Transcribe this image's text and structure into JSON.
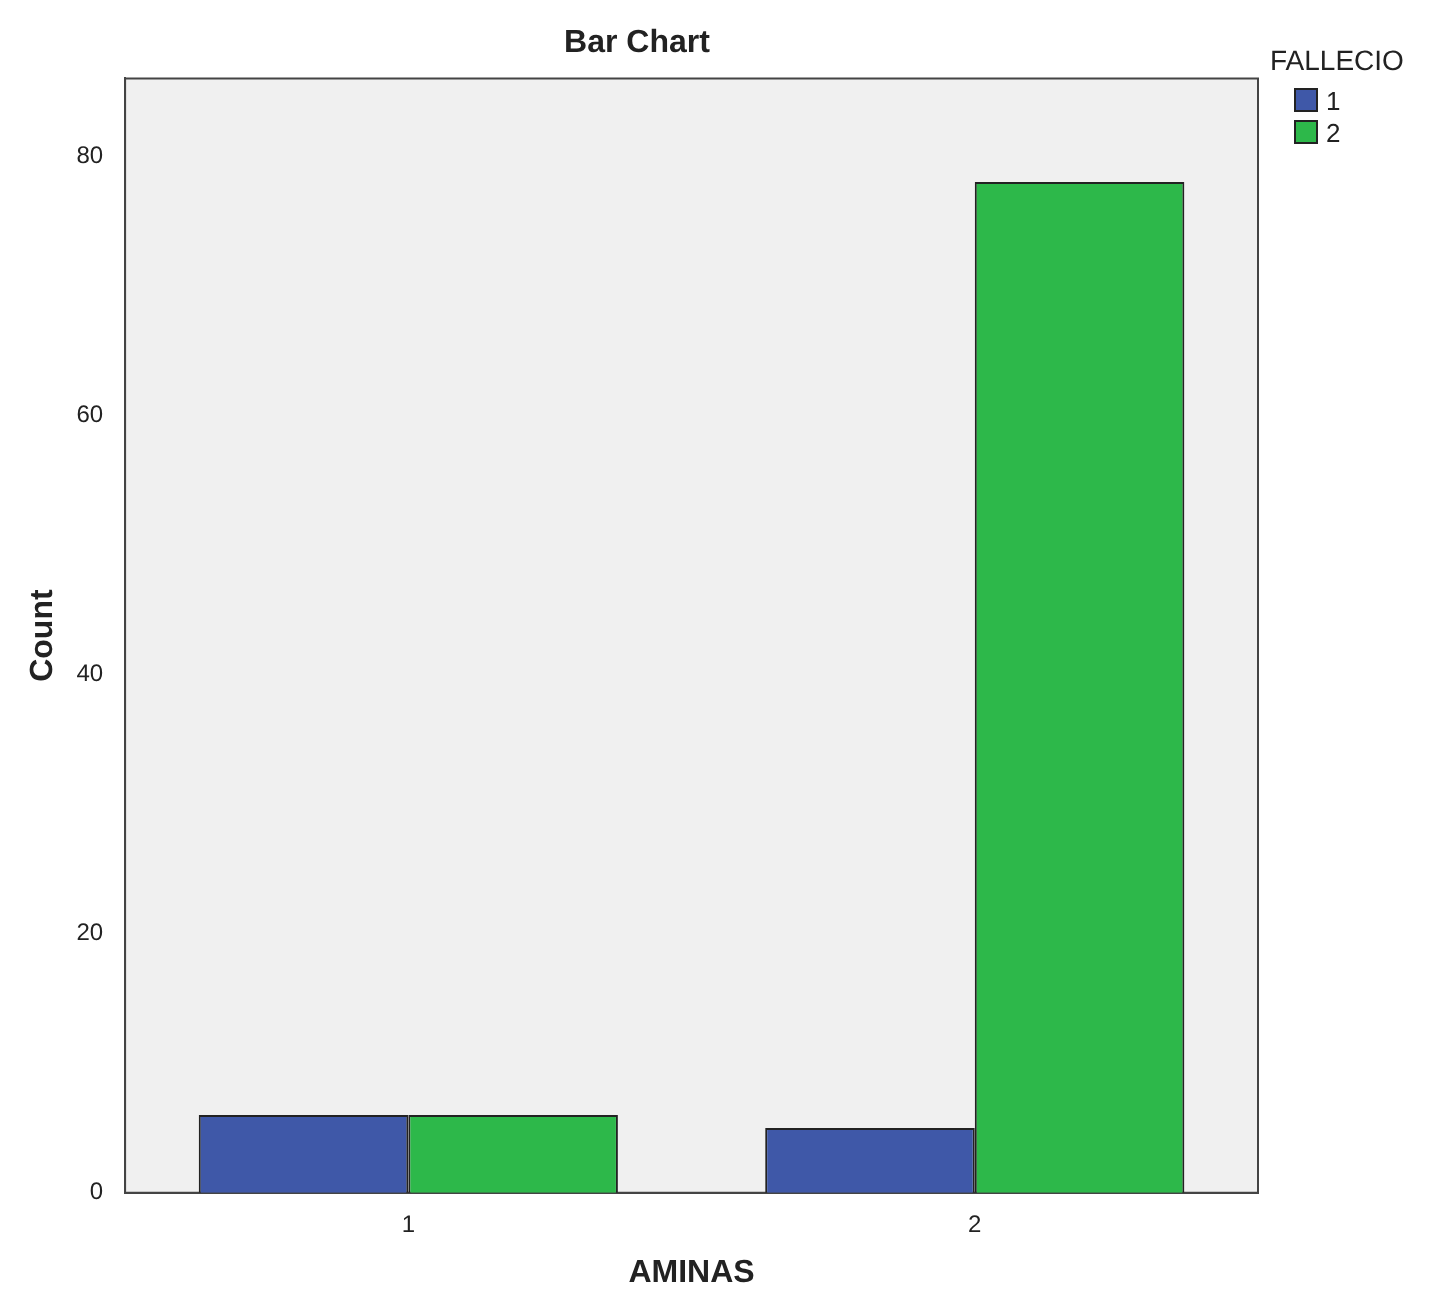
{
  "chart_data": {
    "type": "bar",
    "title": "Bar Chart",
    "xlabel": "AMINAS",
    "ylabel": "Count",
    "legend_title": "FALLECIO",
    "categories": [
      "1",
      "2"
    ],
    "series": [
      {
        "name": "1",
        "color": "#3f58a8",
        "values": [
          6,
          5
        ]
      },
      {
        "name": "2",
        "color": "#2db84a",
        "values": [
          6,
          78
        ]
      }
    ],
    "ylim": [
      0,
      86
    ],
    "yticks": [
      0,
      20,
      40,
      60,
      80
    ],
    "grid": false,
    "legend": "top right"
  }
}
